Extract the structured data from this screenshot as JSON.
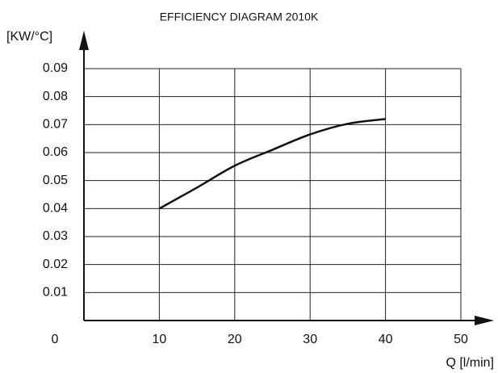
{
  "chart_data": {
    "type": "line",
    "title": "EFFICIENCY DIAGRAM 2010K",
    "y_label": "[KW/°C]",
    "x_label": "Q [l/min]",
    "x": [
      10,
      15,
      20,
      25,
      30,
      35,
      40
    ],
    "values": [
      0.04,
      0.0475,
      0.0553,
      0.061,
      0.0665,
      0.0703,
      0.072
    ],
    "color": "#111111",
    "xlim": [
      0,
      50
    ],
    "xticks": [
      0,
      10,
      20,
      30,
      40,
      50
    ],
    "ylim": [
      0,
      0.09
    ],
    "yticks": [
      0.01,
      0.02,
      0.03,
      0.04,
      0.05,
      0.06,
      0.07,
      0.08,
      0.09
    ],
    "grid": true
  }
}
